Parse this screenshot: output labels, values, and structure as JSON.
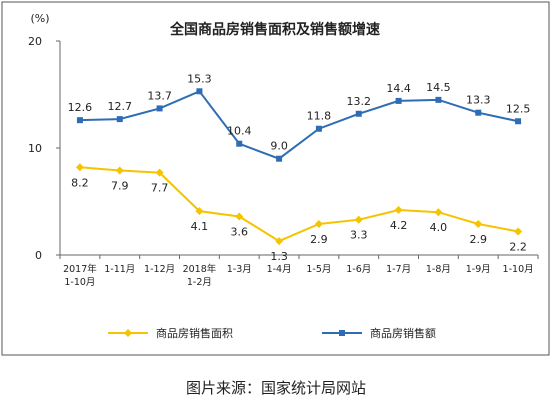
{
  "chart_data": {
    "type": "line",
    "title": "全国商品房销售面积及销售额增速",
    "yunit": "(%)",
    "ylim": [
      0,
      20
    ],
    "yticks": [
      0,
      10,
      20
    ],
    "grid": false,
    "legend_position": "bottom",
    "categories": [
      [
        "2017年",
        "1-10月"
      ],
      [
        "1-11月"
      ],
      [
        "1-12月"
      ],
      [
        "2018年",
        "1-2月"
      ],
      [
        "1-3月"
      ],
      [
        "1-4月"
      ],
      [
        "1-5月"
      ],
      [
        "1-6月"
      ],
      [
        "1-7月"
      ],
      [
        "1-8月"
      ],
      [
        "1-9月"
      ],
      [
        "1-10月"
      ]
    ],
    "series": [
      {
        "name": "商品房销售面积",
        "color": "#f5c400",
        "marker": "diamond",
        "label_position": "below",
        "values": [
          8.2,
          7.9,
          7.7,
          4.1,
          3.6,
          1.3,
          2.9,
          3.3,
          4.2,
          4.0,
          2.9,
          2.2
        ]
      },
      {
        "name": "商品房销售额",
        "color": "#2e6db4",
        "marker": "square",
        "label_position": "above",
        "values": [
          12.6,
          12.7,
          13.7,
          15.3,
          10.4,
          9.0,
          11.8,
          13.2,
          14.4,
          14.5,
          13.3,
          12.5
        ]
      }
    ]
  },
  "caption": "图片来源：国家统计局网站"
}
